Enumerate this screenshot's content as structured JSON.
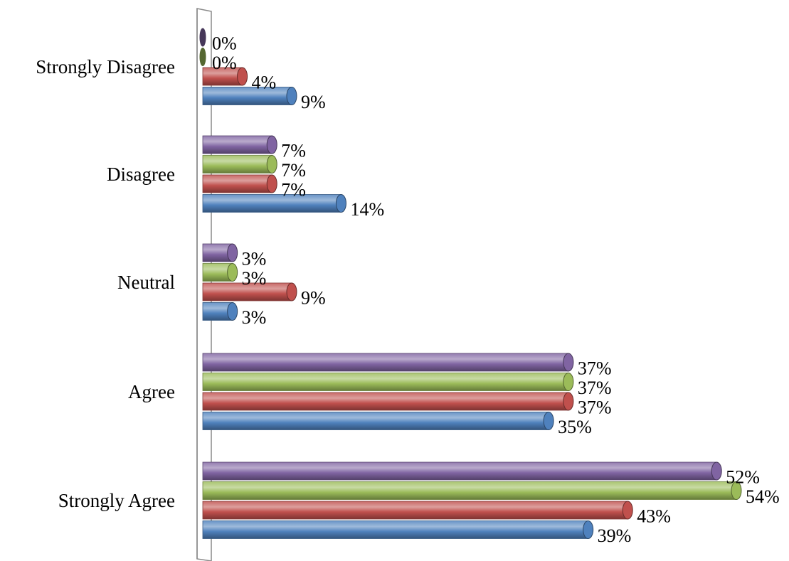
{
  "chart_data": {
    "type": "bar",
    "orientation": "horizontal",
    "categories": [
      "Strongly Disagree",
      "Disagree",
      "Neutral",
      "Agree",
      "Strongly Agree"
    ],
    "series": [
      {
        "values": [
          0,
          7,
          3,
          37,
          52
        ],
        "labels": [
          "0%",
          "7%",
          "3%",
          "37%",
          "52%"
        ],
        "color": "#8064A2"
      },
      {
        "values": [
          0,
          7,
          3,
          37,
          54
        ],
        "labels": [
          "0%",
          "7%",
          "3%",
          "37%",
          "54%"
        ],
        "color": "#9BBB59"
      },
      {
        "values": [
          4,
          7,
          9,
          37,
          43
        ],
        "labels": [
          "4%",
          "7%",
          "9%",
          "37%",
          "43%"
        ],
        "color": "#C0504D"
      },
      {
        "values": [
          9,
          14,
          3,
          35,
          39
        ],
        "labels": [
          "9%",
          "14%",
          "3%",
          "35%",
          "39%"
        ],
        "color": "#4F81BD"
      }
    ],
    "xlim": [
      0,
      54
    ],
    "grid": false,
    "legend": "none",
    "style": "3d-cylinder"
  }
}
